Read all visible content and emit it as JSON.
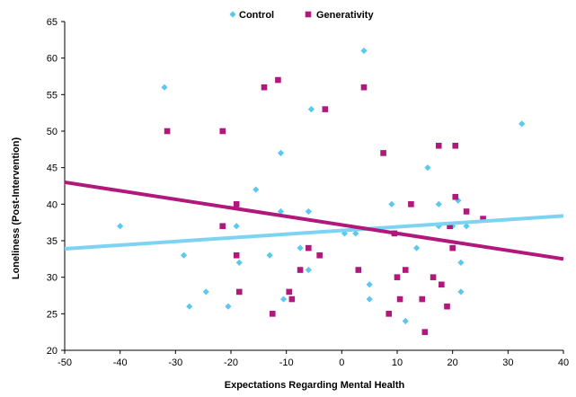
{
  "chart_data": {
    "type": "scatter",
    "xlabel": "Expectations Regarding Mental Health",
    "ylabel": "Loneliness (Post-Intervention)",
    "xlim": [
      -50,
      40
    ],
    "ylim": [
      20,
      65
    ],
    "xticks": [
      -50,
      -40,
      -30,
      -20,
      -10,
      0,
      10,
      20,
      30,
      40
    ],
    "yticks": [
      20,
      25,
      30,
      35,
      40,
      45,
      50,
      55,
      60,
      65
    ],
    "grid": false,
    "legend_position": "top-center",
    "series": [
      {
        "name": "Control",
        "marker": "diamond",
        "color": "#5bc8ef",
        "trendline_color": "#7dd3f2",
        "points": [
          [
            -40,
            37
          ],
          [
            -32,
            56
          ],
          [
            -28.5,
            33
          ],
          [
            -27.5,
            26
          ],
          [
            -24.5,
            28
          ],
          [
            -20.5,
            26
          ],
          [
            -19,
            37
          ],
          [
            -18.5,
            32
          ],
          [
            -15.5,
            42
          ],
          [
            -13,
            33
          ],
          [
            -11,
            47
          ],
          [
            -11,
            39
          ],
          [
            -10.5,
            27
          ],
          [
            -7.5,
            34
          ],
          [
            -6,
            39
          ],
          [
            -6,
            31
          ],
          [
            -5.5,
            53
          ],
          [
            0.5,
            36
          ],
          [
            2.5,
            36
          ],
          [
            4,
            61
          ],
          [
            5,
            29
          ],
          [
            5,
            27
          ],
          [
            9,
            40
          ],
          [
            11.5,
            24
          ],
          [
            13.5,
            34
          ],
          [
            15.5,
            45
          ],
          [
            17.5,
            40
          ],
          [
            17.5,
            37
          ],
          [
            20,
            37
          ],
          [
            21,
            40.5
          ],
          [
            21.5,
            32
          ],
          [
            21.5,
            28
          ],
          [
            22.5,
            37
          ],
          [
            32.5,
            51
          ]
        ],
        "trendline": [
          [
            -50,
            33.9
          ],
          [
            40,
            38.4
          ]
        ]
      },
      {
        "name": "Generativity",
        "marker": "square",
        "color": "#b0187b",
        "trendline_color": "#b0187b",
        "points": [
          [
            -31.5,
            50
          ],
          [
            -21.5,
            50
          ],
          [
            -21.5,
            37
          ],
          [
            -19,
            40
          ],
          [
            -19,
            33
          ],
          [
            -18.5,
            28
          ],
          [
            -14,
            56
          ],
          [
            -12.5,
            25
          ],
          [
            -11.5,
            57
          ],
          [
            -9.5,
            28
          ],
          [
            -9,
            27
          ],
          [
            -7.5,
            31
          ],
          [
            -6,
            34
          ],
          [
            -4,
            33
          ],
          [
            -3,
            53
          ],
          [
            3,
            31
          ],
          [
            4,
            56
          ],
          [
            7.5,
            47
          ],
          [
            8.5,
            25
          ],
          [
            9.5,
            36
          ],
          [
            10,
            30
          ],
          [
            10.5,
            27
          ],
          [
            11.5,
            31
          ],
          [
            12.5,
            40
          ],
          [
            14.5,
            27
          ],
          [
            15,
            22.5
          ],
          [
            16.5,
            30
          ],
          [
            17.5,
            48
          ],
          [
            18,
            29
          ],
          [
            19,
            26
          ],
          [
            19.5,
            37
          ],
          [
            20,
            34
          ],
          [
            20.5,
            48
          ],
          [
            20.5,
            41
          ],
          [
            22.5,
            39
          ],
          [
            25.5,
            38
          ]
        ],
        "trendline": [
          [
            -50,
            43
          ],
          [
            40,
            32.5
          ]
        ]
      }
    ]
  }
}
